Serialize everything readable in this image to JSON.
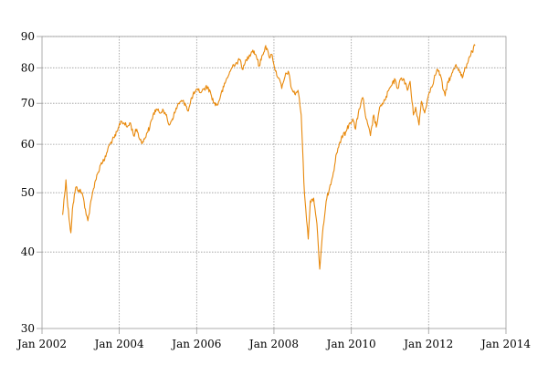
{
  "chart_data": {
    "type": "line",
    "title": "",
    "xlabel": "",
    "ylabel": "",
    "y_scale": "log",
    "ylim": [
      30,
      90
    ],
    "y_ticks": [
      30,
      40,
      50,
      60,
      70,
      80,
      90
    ],
    "y_tick_labels": [
      "30",
      "40",
      "50",
      "60",
      "70",
      "80",
      "90"
    ],
    "xlim": [
      "2002-01-01",
      "2014-01-01"
    ],
    "x_ticks": [
      "2002-01-01",
      "2004-01-01",
      "2006-01-01",
      "2008-01-01",
      "2010-01-01",
      "2012-01-01",
      "2014-01-01"
    ],
    "x_tick_labels": [
      "Jan 2002",
      "Jan 2004",
      "Jan 2006",
      "Jan 2008",
      "Jan 2010",
      "Jan 2012",
      "Jan 2014"
    ],
    "grid": true,
    "legend": "none",
    "series": [
      {
        "color": "#e8890c",
        "points": [
          [
            "2002-07-15",
            46.0
          ],
          [
            "2002-08-15",
            52.5
          ],
          [
            "2002-09-01",
            47.5
          ],
          [
            "2002-10-01",
            43.0
          ],
          [
            "2002-10-15",
            47.0
          ],
          [
            "2002-11-15",
            51.0
          ],
          [
            "2002-12-15",
            50.5
          ],
          [
            "2003-01-15",
            50.0
          ],
          [
            "2003-02-15",
            47.0
          ],
          [
            "2003-03-10",
            45.0
          ],
          [
            "2003-04-15",
            49.0
          ],
          [
            "2003-05-15",
            52.0
          ],
          [
            "2003-06-15",
            54.0
          ],
          [
            "2003-07-15",
            56.0
          ],
          [
            "2003-08-15",
            56.5
          ],
          [
            "2003-09-15",
            59.0
          ],
          [
            "2003-10-15",
            60.5
          ],
          [
            "2003-11-15",
            61.5
          ],
          [
            "2003-12-15",
            63.0
          ],
          [
            "2004-01-15",
            65.5
          ],
          [
            "2004-02-15",
            65.0
          ],
          [
            "2004-03-15",
            64.0
          ],
          [
            "2004-04-15",
            65.0
          ],
          [
            "2004-05-15",
            62.0
          ],
          [
            "2004-06-15",
            63.5
          ],
          [
            "2004-07-15",
            61.0
          ],
          [
            "2004-08-15",
            60.5
          ],
          [
            "2004-09-15",
            62.5
          ],
          [
            "2004-10-15",
            64.0
          ],
          [
            "2004-11-15",
            67.0
          ],
          [
            "2004-12-15",
            68.5
          ],
          [
            "2005-01-15",
            67.5
          ],
          [
            "2005-02-15",
            68.5
          ],
          [
            "2005-03-15",
            67.0
          ],
          [
            "2005-04-15",
            64.5
          ],
          [
            "2005-05-15",
            66.0
          ],
          [
            "2005-06-15",
            68.0
          ],
          [
            "2005-07-15",
            70.0
          ],
          [
            "2005-08-15",
            70.5
          ],
          [
            "2005-09-15",
            70.0
          ],
          [
            "2005-10-15",
            68.0
          ],
          [
            "2005-11-15",
            71.5
          ],
          [
            "2005-12-15",
            73.0
          ],
          [
            "2006-01-15",
            73.5
          ],
          [
            "2006-02-15",
            73.0
          ],
          [
            "2006-03-15",
            74.0
          ],
          [
            "2006-04-15",
            74.5
          ],
          [
            "2006-05-15",
            72.5
          ],
          [
            "2006-06-15",
            70.0
          ],
          [
            "2006-07-15",
            69.5
          ],
          [
            "2006-08-15",
            72.0
          ],
          [
            "2006-09-15",
            74.5
          ],
          [
            "2006-10-15",
            77.0
          ],
          [
            "2006-11-15",
            79.0
          ],
          [
            "2006-12-15",
            81.0
          ],
          [
            "2007-01-15",
            81.5
          ],
          [
            "2007-02-15",
            82.5
          ],
          [
            "2007-03-15",
            79.5
          ],
          [
            "2007-04-15",
            82.5
          ],
          [
            "2007-05-15",
            84.0
          ],
          [
            "2007-06-15",
            85.5
          ],
          [
            "2007-07-15",
            84.0
          ],
          [
            "2007-08-15",
            80.5
          ],
          [
            "2007-09-15",
            84.0
          ],
          [
            "2007-10-15",
            87.0
          ],
          [
            "2007-11-15",
            83.5
          ],
          [
            "2007-12-15",
            84.0
          ],
          [
            "2008-01-15",
            79.0
          ],
          [
            "2008-02-15",
            77.0
          ],
          [
            "2008-03-15",
            74.0
          ],
          [
            "2008-04-15",
            77.5
          ],
          [
            "2008-05-15",
            79.0
          ],
          [
            "2008-06-15",
            74.0
          ],
          [
            "2008-07-15",
            72.5
          ],
          [
            "2008-08-15",
            73.5
          ],
          [
            "2008-09-15",
            67.0
          ],
          [
            "2008-10-10",
            52.0
          ],
          [
            "2008-10-28",
            47.0
          ],
          [
            "2008-11-20",
            42.0
          ],
          [
            "2008-12-10",
            48.5
          ],
          [
            "2009-01-10",
            49.0
          ],
          [
            "2009-02-10",
            44.5
          ],
          [
            "2009-03-09",
            37.5
          ],
          [
            "2009-04-10",
            44.0
          ],
          [
            "2009-05-15",
            49.0
          ],
          [
            "2009-06-15",
            51.5
          ],
          [
            "2009-07-15",
            54.0
          ],
          [
            "2009-08-15",
            58.0
          ],
          [
            "2009-09-15",
            60.5
          ],
          [
            "2009-10-15",
            62.0
          ],
          [
            "2009-11-15",
            63.0
          ],
          [
            "2009-12-15",
            65.0
          ],
          [
            "2010-01-15",
            66.0
          ],
          [
            "2010-02-10",
            63.5
          ],
          [
            "2010-03-15",
            68.5
          ],
          [
            "2010-04-20",
            71.5
          ],
          [
            "2010-05-20",
            66.0
          ],
          [
            "2010-07-01",
            62.0
          ],
          [
            "2010-08-01",
            67.0
          ],
          [
            "2010-08-25",
            64.0
          ],
          [
            "2010-09-20",
            68.0
          ],
          [
            "2010-10-20",
            70.0
          ],
          [
            "2010-11-20",
            71.0
          ],
          [
            "2010-12-20",
            73.5
          ],
          [
            "2011-01-20",
            75.0
          ],
          [
            "2011-02-20",
            76.5
          ],
          [
            "2011-03-15",
            74.0
          ],
          [
            "2011-04-20",
            77.0
          ],
          [
            "2011-05-15",
            76.5
          ],
          [
            "2011-06-15",
            73.5
          ],
          [
            "2011-07-10",
            76.0
          ],
          [
            "2011-08-10",
            67.0
          ],
          [
            "2011-09-01",
            69.0
          ],
          [
            "2011-10-03",
            64.5
          ],
          [
            "2011-10-25",
            70.5
          ],
          [
            "2011-11-25",
            67.5
          ],
          [
            "2011-12-20",
            71.0
          ],
          [
            "2012-01-20",
            74.0
          ],
          [
            "2012-02-20",
            76.5
          ],
          [
            "2012-03-20",
            79.5
          ],
          [
            "2012-04-20",
            78.0
          ],
          [
            "2012-05-20",
            73.5
          ],
          [
            "2012-06-05",
            72.0
          ],
          [
            "2012-07-01",
            76.0
          ],
          [
            "2012-08-01",
            77.5
          ],
          [
            "2012-09-15",
            81.0
          ],
          [
            "2012-10-15",
            79.5
          ],
          [
            "2012-11-15",
            77.0
          ],
          [
            "2012-12-15",
            80.0
          ],
          [
            "2013-01-15",
            83.0
          ],
          [
            "2013-02-15",
            85.0
          ],
          [
            "2013-03-15",
            87.0
          ]
        ]
      }
    ]
  }
}
